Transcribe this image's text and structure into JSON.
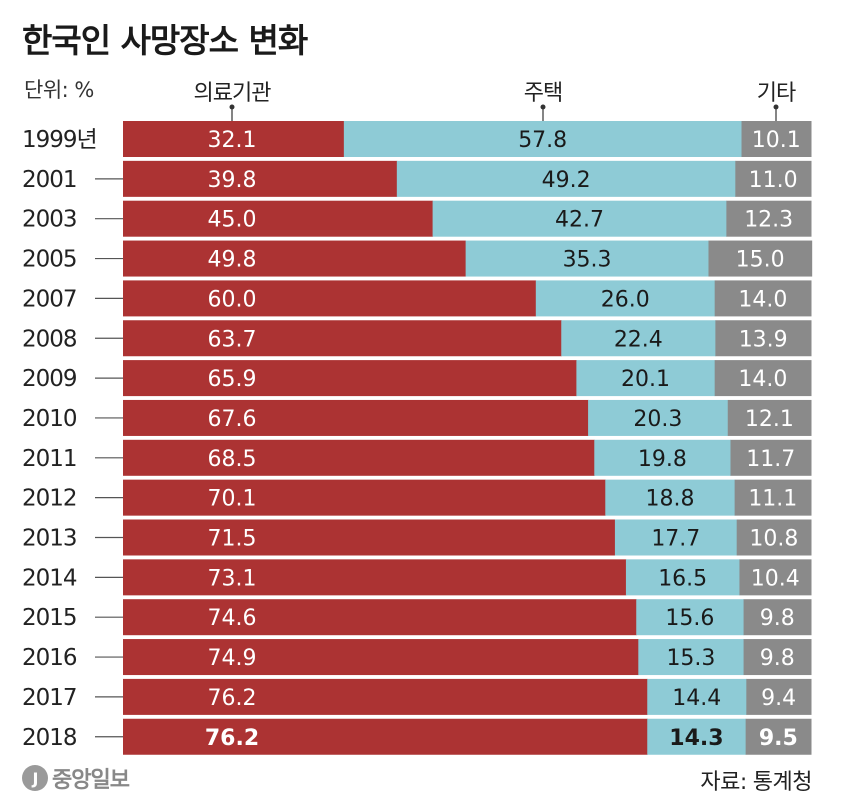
{
  "title": "한국인 사망장소 변화",
  "unit_label": "단위: %",
  "source": {
    "label": "자료:",
    "value": "통계청"
  },
  "logo": {
    "mark": "J",
    "text": "중앙일보"
  },
  "colors": {
    "medical": "#ac3333",
    "home": "#8ecbd6",
    "other": "#8a8a8a"
  },
  "chart_data": {
    "type": "bar",
    "stacked": true,
    "orientation": "horizontal",
    "title": "한국인 사망장소 변화",
    "ylabel": "단위: %",
    "categories": [
      "1999년",
      "2001",
      "2003",
      "2005",
      "2007",
      "2008",
      "2009",
      "2010",
      "2011",
      "2012",
      "2013",
      "2014",
      "2015",
      "2016",
      "2017",
      "2018"
    ],
    "series": [
      {
        "name": "의료기관",
        "values": [
          32.1,
          39.8,
          45.0,
          49.8,
          60.0,
          63.7,
          65.9,
          67.6,
          68.5,
          70.1,
          71.5,
          73.1,
          74.6,
          74.9,
          76.2,
          76.2
        ]
      },
      {
        "name": "주택",
        "values": [
          57.8,
          49.2,
          42.7,
          35.3,
          26.0,
          22.4,
          20.1,
          20.3,
          19.8,
          18.8,
          17.7,
          16.5,
          15.6,
          15.3,
          14.4,
          14.3
        ]
      },
      {
        "name": "기타",
        "values": [
          10.1,
          11.0,
          12.3,
          15.0,
          14.0,
          13.9,
          14.0,
          12.1,
          11.7,
          11.1,
          10.8,
          10.4,
          9.8,
          9.8,
          9.4,
          9.5
        ]
      }
    ],
    "xlim": [
      0,
      100
    ],
    "legend": "top",
    "highlight_category": "2018"
  }
}
